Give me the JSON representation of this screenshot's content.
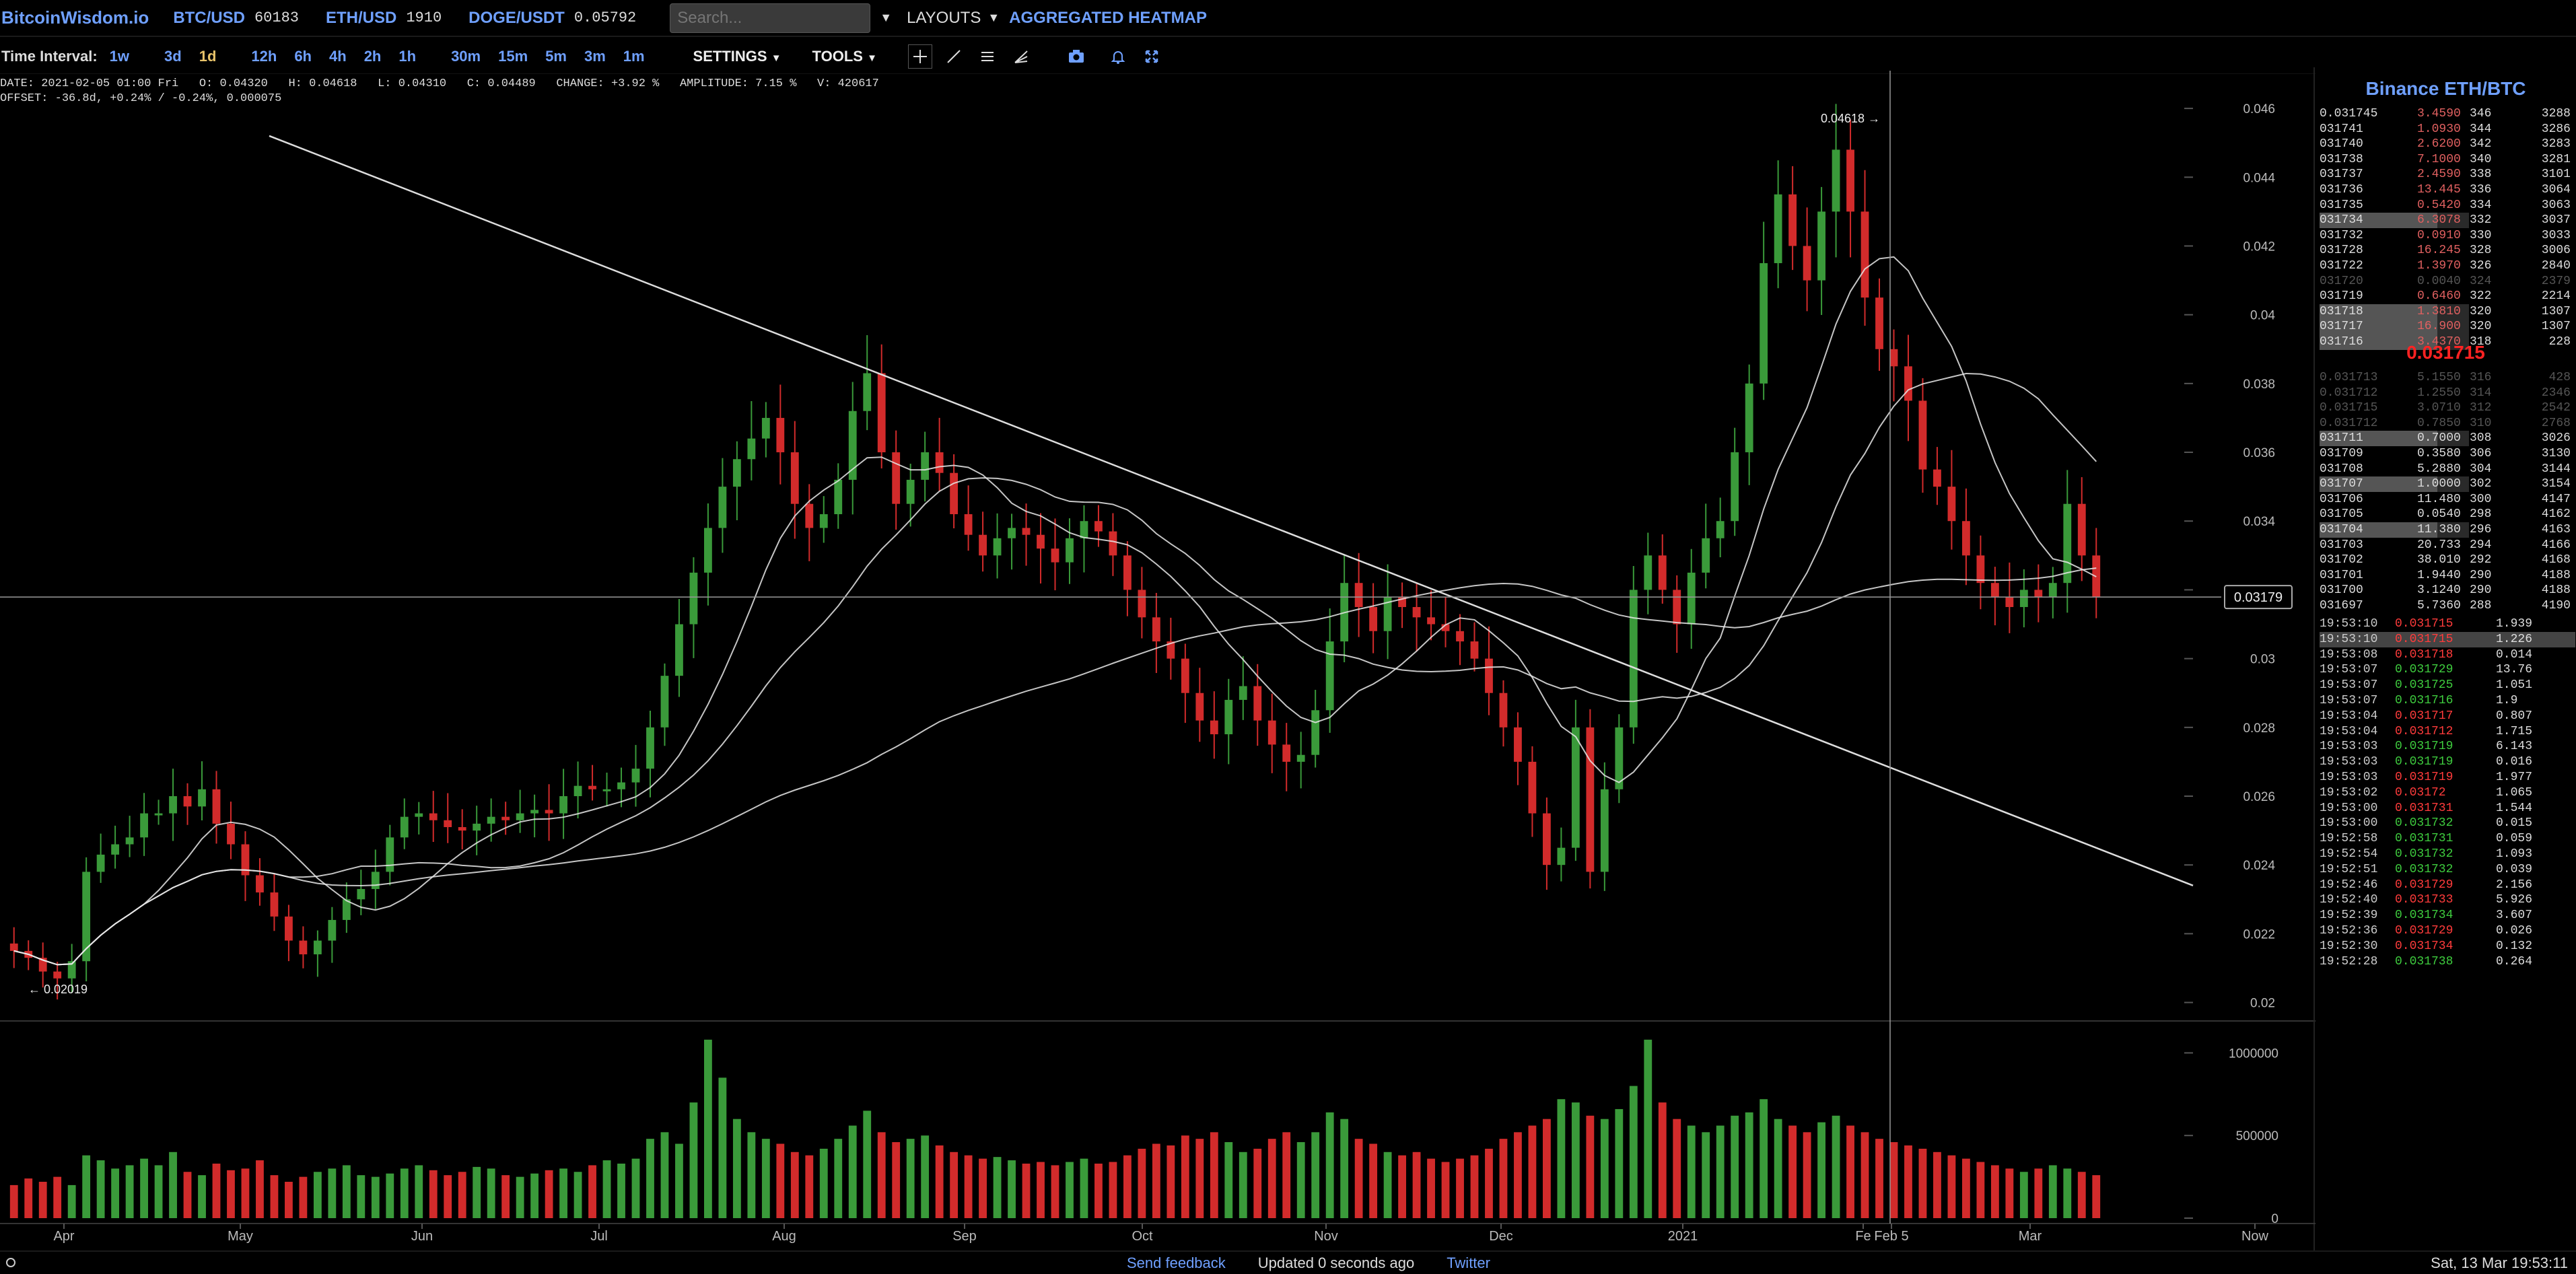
{
  "app": {
    "logo": "BitcoinWisdom.io"
  },
  "tickers": [
    {
      "symbol": "BTC/USD",
      "price": "60183"
    },
    {
      "symbol": "ETH/USD",
      "price": "1910"
    },
    {
      "symbol": "DOGE/USDT",
      "price": "0.05792"
    }
  ],
  "search": {
    "placeholder": "Search..."
  },
  "menu": {
    "layouts": "LAYOUTS",
    "heatmap": "AGGREGATED HEATMAP"
  },
  "toolbar": {
    "interval_label": "Time Interval:",
    "intervals": [
      "1w",
      "3d",
      "1d",
      "12h",
      "6h",
      "4h",
      "2h",
      "1h",
      "30m",
      "15m",
      "5m",
      "3m",
      "1m"
    ],
    "active_interval": "1d",
    "settings": "SETTINGS",
    "tools": "TOOLS"
  },
  "ohlc_info": {
    "line1": "DATE: 2021-02-05 01:00 Fri   O: 0.04320   H: 0.04618   L: 0.04310   C: 0.04489   CHANGE: +3.92 %   AMPLITUDE: 7.15 %   V: 420617",
    "line2": "OFFSET: -36.8d, +0.24% / -0.24%, 0.000075"
  },
  "chart_data": {
    "type": "candlestick",
    "pair": "Binance ETH/BTC",
    "x_labels": [
      "Apr",
      "May",
      "Jun",
      "Jul",
      "Aug",
      "Sep",
      "Oct",
      "Nov",
      "Dec",
      "2021",
      "Fe",
      "Feb 5",
      "Mar",
      "Now"
    ],
    "y_ticks": [
      "0.046",
      "0.044",
      "0.042",
      "0.04",
      "0.038",
      "0.036",
      "0.034",
      "0.032",
      "0.03",
      "0.028",
      "0.026",
      "0.024",
      "0.022",
      "0.02"
    ],
    "y_range": [
      0.0196,
      0.047
    ],
    "volume_ticks": [
      "1000000",
      "500000",
      "0"
    ],
    "crosshair_price": "0.03179",
    "high_marker": "0.04618",
    "low_marker": "0.02019",
    "closes": [
      0.0215,
      0.0213,
      0.0209,
      0.0207,
      0.0212,
      0.0238,
      0.0243,
      0.0246,
      0.0248,
      0.0255,
      0.0255,
      0.026,
      0.0257,
      0.0262,
      0.0252,
      0.0246,
      0.0237,
      0.0232,
      0.0225,
      0.0218,
      0.0214,
      0.0218,
      0.0224,
      0.023,
      0.0233,
      0.0238,
      0.0248,
      0.0254,
      0.0255,
      0.0253,
      0.0251,
      0.025,
      0.0252,
      0.0254,
      0.0253,
      0.0255,
      0.0256,
      0.0255,
      0.026,
      0.0263,
      0.0262,
      0.0262,
      0.0264,
      0.0268,
      0.028,
      0.0295,
      0.031,
      0.0325,
      0.0338,
      0.035,
      0.0358,
      0.0364,
      0.037,
      0.036,
      0.0345,
      0.0338,
      0.0342,
      0.0352,
      0.0372,
      0.0383,
      0.036,
      0.0345,
      0.0352,
      0.036,
      0.0354,
      0.0342,
      0.0336,
      0.033,
      0.0335,
      0.0338,
      0.0336,
      0.0332,
      0.0328,
      0.0335,
      0.034,
      0.0337,
      0.033,
      0.032,
      0.0312,
      0.0305,
      0.03,
      0.029,
      0.0282,
      0.0278,
      0.0288,
      0.0292,
      0.0282,
      0.0275,
      0.027,
      0.0272,
      0.0285,
      0.0305,
      0.0322,
      0.0315,
      0.0308,
      0.0318,
      0.0315,
      0.0312,
      0.031,
      0.0308,
      0.0305,
      0.03,
      0.029,
      0.028,
      0.027,
      0.0255,
      0.024,
      0.0245,
      0.028,
      0.0238,
      0.0262,
      0.028,
      0.032,
      0.033,
      0.032,
      0.031,
      0.0325,
      0.0335,
      0.034,
      0.036,
      0.038,
      0.0415,
      0.0435,
      0.042,
      0.041,
      0.043,
      0.0448,
      0.043,
      0.0405,
      0.039,
      0.0385,
      0.0375,
      0.0355,
      0.035,
      0.034,
      0.033,
      0.0322,
      0.0318,
      0.0315,
      0.032,
      0.0318,
      0.0322,
      0.0345,
      0.033,
      0.0318
    ],
    "volumes": [
      200000,
      240000,
      220000,
      250000,
      200000,
      380000,
      350000,
      300000,
      320000,
      360000,
      320000,
      400000,
      280000,
      260000,
      330000,
      290000,
      300000,
      350000,
      260000,
      220000,
      250000,
      280000,
      300000,
      320000,
      260000,
      250000,
      270000,
      300000,
      320000,
      290000,
      260000,
      280000,
      310000,
      300000,
      260000,
      250000,
      270000,
      290000,
      300000,
      280000,
      320000,
      350000,
      330000,
      360000,
      480000,
      520000,
      450000,
      700000,
      1080000,
      850000,
      600000,
      520000,
      480000,
      450000,
      400000,
      380000,
      420000,
      480000,
      560000,
      650000,
      520000,
      460000,
      480000,
      500000,
      440000,
      400000,
      380000,
      360000,
      370000,
      350000,
      330000,
      340000,
      320000,
      340000,
      360000,
      330000,
      340000,
      380000,
      420000,
      450000,
      440000,
      500000,
      480000,
      520000,
      460000,
      400000,
      420000,
      480000,
      520000,
      460000,
      520000,
      640000,
      600000,
      480000,
      450000,
      400000,
      380000,
      400000,
      360000,
      340000,
      360000,
      380000,
      420000,
      480000,
      520000,
      560000,
      600000,
      720000,
      700000,
      620000,
      600000,
      660000,
      800000,
      1080000,
      700000,
      600000,
      560000,
      520000,
      560000,
      620000,
      640000,
      720000,
      600000,
      560000,
      520000,
      580000,
      620000,
      560000,
      520000,
      480000,
      460000,
      440000,
      420000,
      400000,
      380000,
      360000,
      340000,
      320000,
      300000,
      280000,
      300000,
      320000,
      300000,
      280000,
      260000
    ]
  },
  "orderbook": {
    "asks": [
      {
        "price": "0.031745",
        "qty": "3.4590",
        "n": "346",
        "cum": "3288"
      },
      {
        "price": "031741",
        "qty": "1.0930",
        "n": "344",
        "cum": "3286"
      },
      {
        "price": "031740",
        "qty": "2.6200",
        "n": "342",
        "cum": "3283"
      },
      {
        "price": "031738",
        "qty": "7.1000",
        "n": "340",
        "cum": "3281"
      },
      {
        "price": "031737",
        "qty": "2.4590",
        "n": "338",
        "cum": "3101"
      },
      {
        "price": "031736",
        "qty": "13.445",
        "n": "336",
        "cum": "3064"
      },
      {
        "price": "031735",
        "qty": "0.5420",
        "n": "334",
        "cum": "3063"
      },
      {
        "price": "031734",
        "qty": "6.3078",
        "n": "332",
        "cum": "3037"
      },
      {
        "price": "031732",
        "qty": "0.0910",
        "n": "330",
        "cum": "3033"
      },
      {
        "price": "031728",
        "qty": "16.245",
        "n": "328",
        "cum": "3006"
      },
      {
        "price": "031722",
        "qty": "1.3970",
        "n": "326",
        "cum": "2840"
      },
      {
        "price": "031720",
        "qty": "0.0040",
        "n": "324",
        "cum": "2379"
      },
      {
        "price": "031719",
        "qty": "0.6460",
        "n": "322",
        "cum": "2214"
      },
      {
        "price": "031718",
        "qty": "1.3810",
        "n": "320",
        "cum": "1307"
      },
      {
        "price": "031717",
        "qty": "16.900",
        "n": "320",
        "cum": "1307"
      },
      {
        "price": "031716",
        "qty": "3.4370",
        "n": "318",
        "cum": "228"
      }
    ],
    "mid": "0.031715",
    "bids": [
      {
        "price": "0.031713",
        "qty": "5.1550",
        "n": "316",
        "cum": "428"
      },
      {
        "price": "0.031712",
        "qty": "1.2550",
        "n": "314",
        "cum": "2346"
      },
      {
        "price": "0.031715",
        "qty": "3.0710",
        "n": "312",
        "cum": "2542"
      },
      {
        "price": "0.031712",
        "qty": "0.7850",
        "n": "310",
        "cum": "2768"
      },
      {
        "price": "031711",
        "qty": "0.7000",
        "n": "308",
        "cum": "3026"
      },
      {
        "price": "031709",
        "qty": "0.3580",
        "n": "306",
        "cum": "3130"
      },
      {
        "price": "031708",
        "qty": "5.2880",
        "n": "304",
        "cum": "3144"
      },
      {
        "price": "031707",
        "qty": "1.0000",
        "n": "302",
        "cum": "3154"
      },
      {
        "price": "031706",
        "qty": "11.480",
        "n": "300",
        "cum": "4147"
      },
      {
        "price": "031705",
        "qty": "0.0540",
        "n": "298",
        "cum": "4162"
      },
      {
        "price": "031704",
        "qty": "11.380",
        "n": "296",
        "cum": "4163"
      },
      {
        "price": "031703",
        "qty": "20.733",
        "n": "294",
        "cum": "4166"
      },
      {
        "price": "031702",
        "qty": "38.010",
        "n": "292",
        "cum": "4168"
      },
      {
        "price": "031701",
        "qty": "1.9440",
        "n": "290",
        "cum": "4188"
      },
      {
        "price": "031700",
        "qty": "3.1240",
        "n": "290",
        "cum": "4188"
      },
      {
        "price": "031697",
        "qty": "5.7360",
        "n": "288",
        "cum": "4190"
      }
    ]
  },
  "trades": [
    {
      "time": "19:53:10",
      "price": "0.031715",
      "side": "sell",
      "qty": "1.939"
    },
    {
      "time": "19:53:10",
      "price": "0.031715",
      "side": "sell",
      "qty": "1.226"
    },
    {
      "time": "19:53:08",
      "price": "0.031718",
      "side": "sell",
      "qty": "0.014"
    },
    {
      "time": "19:53:07",
      "price": "0.031729",
      "side": "buy",
      "qty": "13.76"
    },
    {
      "time": "19:53:07",
      "price": "0.031725",
      "side": "buy",
      "qty": "1.051"
    },
    {
      "time": "19:53:07",
      "price": "0.031716",
      "side": "buy",
      "qty": "1.9"
    },
    {
      "time": "19:53:04",
      "price": "0.031717",
      "side": "sell",
      "qty": "0.807"
    },
    {
      "time": "19:53:04",
      "price": "0.031712",
      "side": "sell",
      "qty": "1.715"
    },
    {
      "time": "19:53:03",
      "price": "0.031719",
      "side": "buy",
      "qty": "6.143"
    },
    {
      "time": "19:53:03",
      "price": "0.031719",
      "side": "buy",
      "qty": "0.016"
    },
    {
      "time": "19:53:03",
      "price": "0.031719",
      "side": "sell",
      "qty": "1.977"
    },
    {
      "time": "19:53:02",
      "price": "0.03172",
      "side": "sell",
      "qty": "1.065"
    },
    {
      "time": "19:53:00",
      "price": "0.031731",
      "side": "sell",
      "qty": "1.544"
    },
    {
      "time": "19:53:00",
      "price": "0.031732",
      "side": "buy",
      "qty": "0.015"
    },
    {
      "time": "19:52:58",
      "price": "0.031731",
      "side": "buy",
      "qty": "0.059"
    },
    {
      "time": "19:52:54",
      "price": "0.031732",
      "side": "buy",
      "qty": "1.093"
    },
    {
      "time": "19:52:51",
      "price": "0.031732",
      "side": "buy",
      "qty": "0.039"
    },
    {
      "time": "19:52:46",
      "price": "0.031729",
      "side": "sell",
      "qty": "2.156"
    },
    {
      "time": "19:52:40",
      "price": "0.031733",
      "side": "sell",
      "qty": "5.926"
    },
    {
      "time": "19:52:39",
      "price": "0.031734",
      "side": "buy",
      "qty": "3.607"
    },
    {
      "time": "19:52:36",
      "price": "0.031729",
      "side": "sell",
      "qty": "0.026"
    },
    {
      "time": "19:52:30",
      "price": "0.031734",
      "side": "sell",
      "qty": "0.132"
    },
    {
      "time": "19:52:28",
      "price": "0.031738",
      "side": "buy",
      "qty": "0.264"
    }
  ],
  "footer": {
    "feedback": "Send feedback",
    "updated": "Updated 0 seconds ago",
    "twitter": "Twitter",
    "datetime": "Sat, 13 Mar 19:53:11"
  },
  "colors": {
    "up": "#3a9a3a",
    "down": "#d22b2b",
    "accent": "#6fa0ff",
    "ma": "#e8e8e8"
  }
}
